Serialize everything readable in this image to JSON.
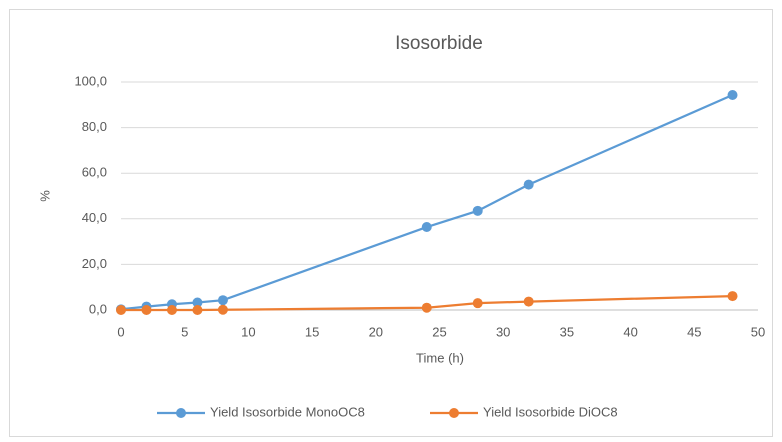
{
  "chart_data": {
    "type": "line",
    "title": "Isosorbide",
    "x_label": "Time (h)",
    "y_label": "%",
    "x": [
      0,
      2,
      4,
      6,
      8,
      24,
      28,
      32,
      48
    ],
    "series": [
      {
        "name": "Yield Isosorbide MonoOC8",
        "color": "#5b9bd5",
        "values": [
          0.3,
          1.5,
          2.5,
          3.3,
          4.3,
          36.4,
          43.5,
          55.0,
          94.3
        ]
      },
      {
        "name": "Yield Isosorbide DiOC8",
        "color": "#ed7d31",
        "values": [
          0,
          0,
          0,
          0,
          0.1,
          1.0,
          3.0,
          3.7,
          6.1
        ]
      }
    ],
    "xlim": [
      0,
      50
    ],
    "xticks": [
      0,
      5,
      10,
      15,
      20,
      25,
      30,
      35,
      40,
      45,
      50
    ],
    "ylim": [
      0,
      100
    ],
    "yticks": [
      {
        "value": 0,
        "label": "0,0"
      },
      {
        "value": 20,
        "label": "20,0"
      },
      {
        "value": 40,
        "label": "40,0"
      },
      {
        "value": 60,
        "label": "60,0"
      },
      {
        "value": 80,
        "label": "80,0"
      },
      {
        "value": 100,
        "label": "100,0"
      }
    ],
    "grid": true,
    "legend": "bottom"
  }
}
